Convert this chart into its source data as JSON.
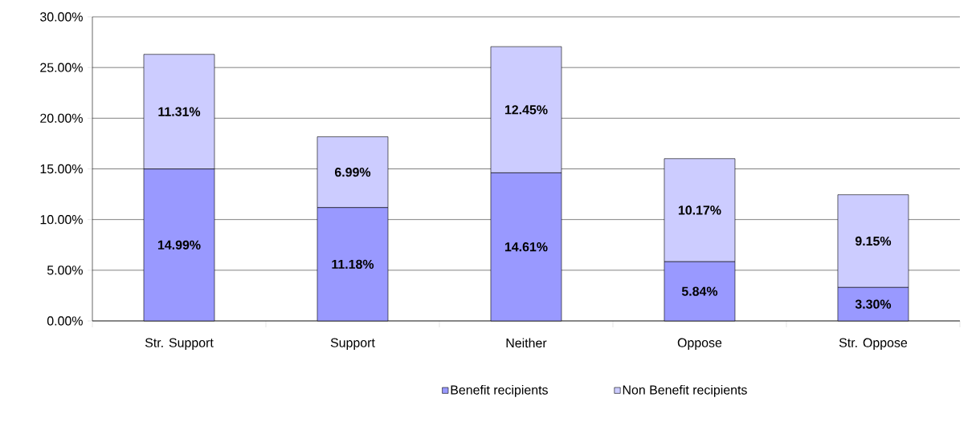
{
  "chart_data": {
    "type": "bar",
    "stacked": true,
    "categories": [
      "Str. Support",
      "Support",
      "Neither",
      "Oppose",
      "Str. Oppose"
    ],
    "series": [
      {
        "name": "Benefit recipients",
        "color": "#9999ff",
        "values": [
          14.99,
          11.18,
          14.61,
          5.84,
          3.3
        ],
        "value_labels": [
          "14.99%",
          "11.18%",
          "14.61%",
          "5.84%",
          "3.30%"
        ]
      },
      {
        "name": "Non Benefit recipients",
        "color": "#ccccff",
        "values": [
          11.31,
          6.99,
          12.45,
          10.17,
          9.15
        ],
        "value_labels": [
          "11.31%",
          "6.99%",
          "12.45%",
          "10.17%",
          "9.15%"
        ]
      }
    ],
    "ylim": [
      0,
      30
    ],
    "yticks": [
      {
        "value": 0,
        "label": "0.00%"
      },
      {
        "value": 5,
        "label": "5.00%"
      },
      {
        "value": 10,
        "label": "10.00%"
      },
      {
        "value": 15,
        "label": "15.00%"
      },
      {
        "value": 20,
        "label": "20.00%"
      },
      {
        "value": 25,
        "label": "25.00%"
      },
      {
        "value": 30,
        "label": "30.00%"
      }
    ],
    "grid": "y",
    "legend": "bottom"
  }
}
